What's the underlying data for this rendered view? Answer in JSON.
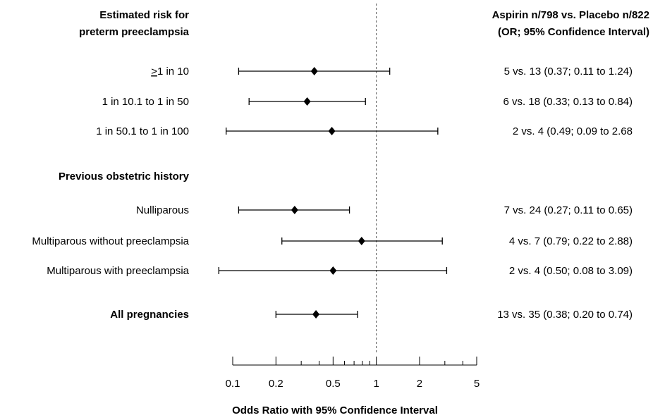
{
  "chart_data": {
    "type": "forest",
    "xscale": "log",
    "xlim": [
      0.1,
      5
    ],
    "xticks": [
      0.1,
      0.2,
      0.5,
      1,
      2,
      5
    ],
    "xtick_labels": [
      "0.1",
      "0.2",
      "0.5",
      "1",
      "2",
      "5"
    ],
    "minor_ticks": [
      0.3,
      0.4,
      0.6,
      0.7,
      0.8,
      0.9,
      3,
      4
    ],
    "reference_line": 1,
    "xlabel": "Odds Ratio with 95% Confidence Interval",
    "left_header": [
      "Estimated risk for",
      "preterm preeclampsia"
    ],
    "right_header": [
      "Aspirin n/798 vs. Placebo n/822",
      "(OR; 95% Confidence Interval)"
    ],
    "rows": [
      {
        "label": "≥1 in 10",
        "bold": false,
        "or": 0.37,
        "lo": 0.11,
        "hi": 1.24,
        "ci_text": "5 vs. 13 (0.37; 0.11 to 1.24)"
      },
      {
        "label": "1 in 10.1 to 1 in 50",
        "bold": false,
        "or": 0.33,
        "lo": 0.13,
        "hi": 0.84,
        "ci_text": "6 vs. 18 (0.33; 0.13 to 0.84)"
      },
      {
        "label": "1 in 50.1 to 1 in 100",
        "bold": false,
        "or": 0.49,
        "lo": 0.09,
        "hi": 2.68,
        "ci_text": "2 vs. 4 (0.49; 0.09 to 2.68"
      },
      {
        "label": "Previous obstetric history",
        "bold": true,
        "or": null,
        "lo": null,
        "hi": null,
        "ci_text": ""
      },
      {
        "label": "Nulliparous",
        "bold": false,
        "or": 0.27,
        "lo": 0.11,
        "hi": 0.65,
        "ci_text": "7 vs. 24 (0.27; 0.11 to 0.65)"
      },
      {
        "label": "Multiparous without preeclampsia",
        "bold": false,
        "or": 0.79,
        "lo": 0.22,
        "hi": 2.88,
        "ci_text": "4 vs. 7 (0.79; 0.22 to 2.88)"
      },
      {
        "label": "Multiparous with preeclampsia",
        "bold": false,
        "or": 0.5,
        "lo": 0.08,
        "hi": 3.09,
        "ci_text": "2 vs. 4 (0.50; 0.08 to 3.09)"
      },
      {
        "label": "All pregnancies",
        "bold": true,
        "or": 0.38,
        "lo": 0.2,
        "hi": 0.74,
        "ci_text": "13 vs. 35 (0.38; 0.20 to 0.74)"
      }
    ]
  }
}
